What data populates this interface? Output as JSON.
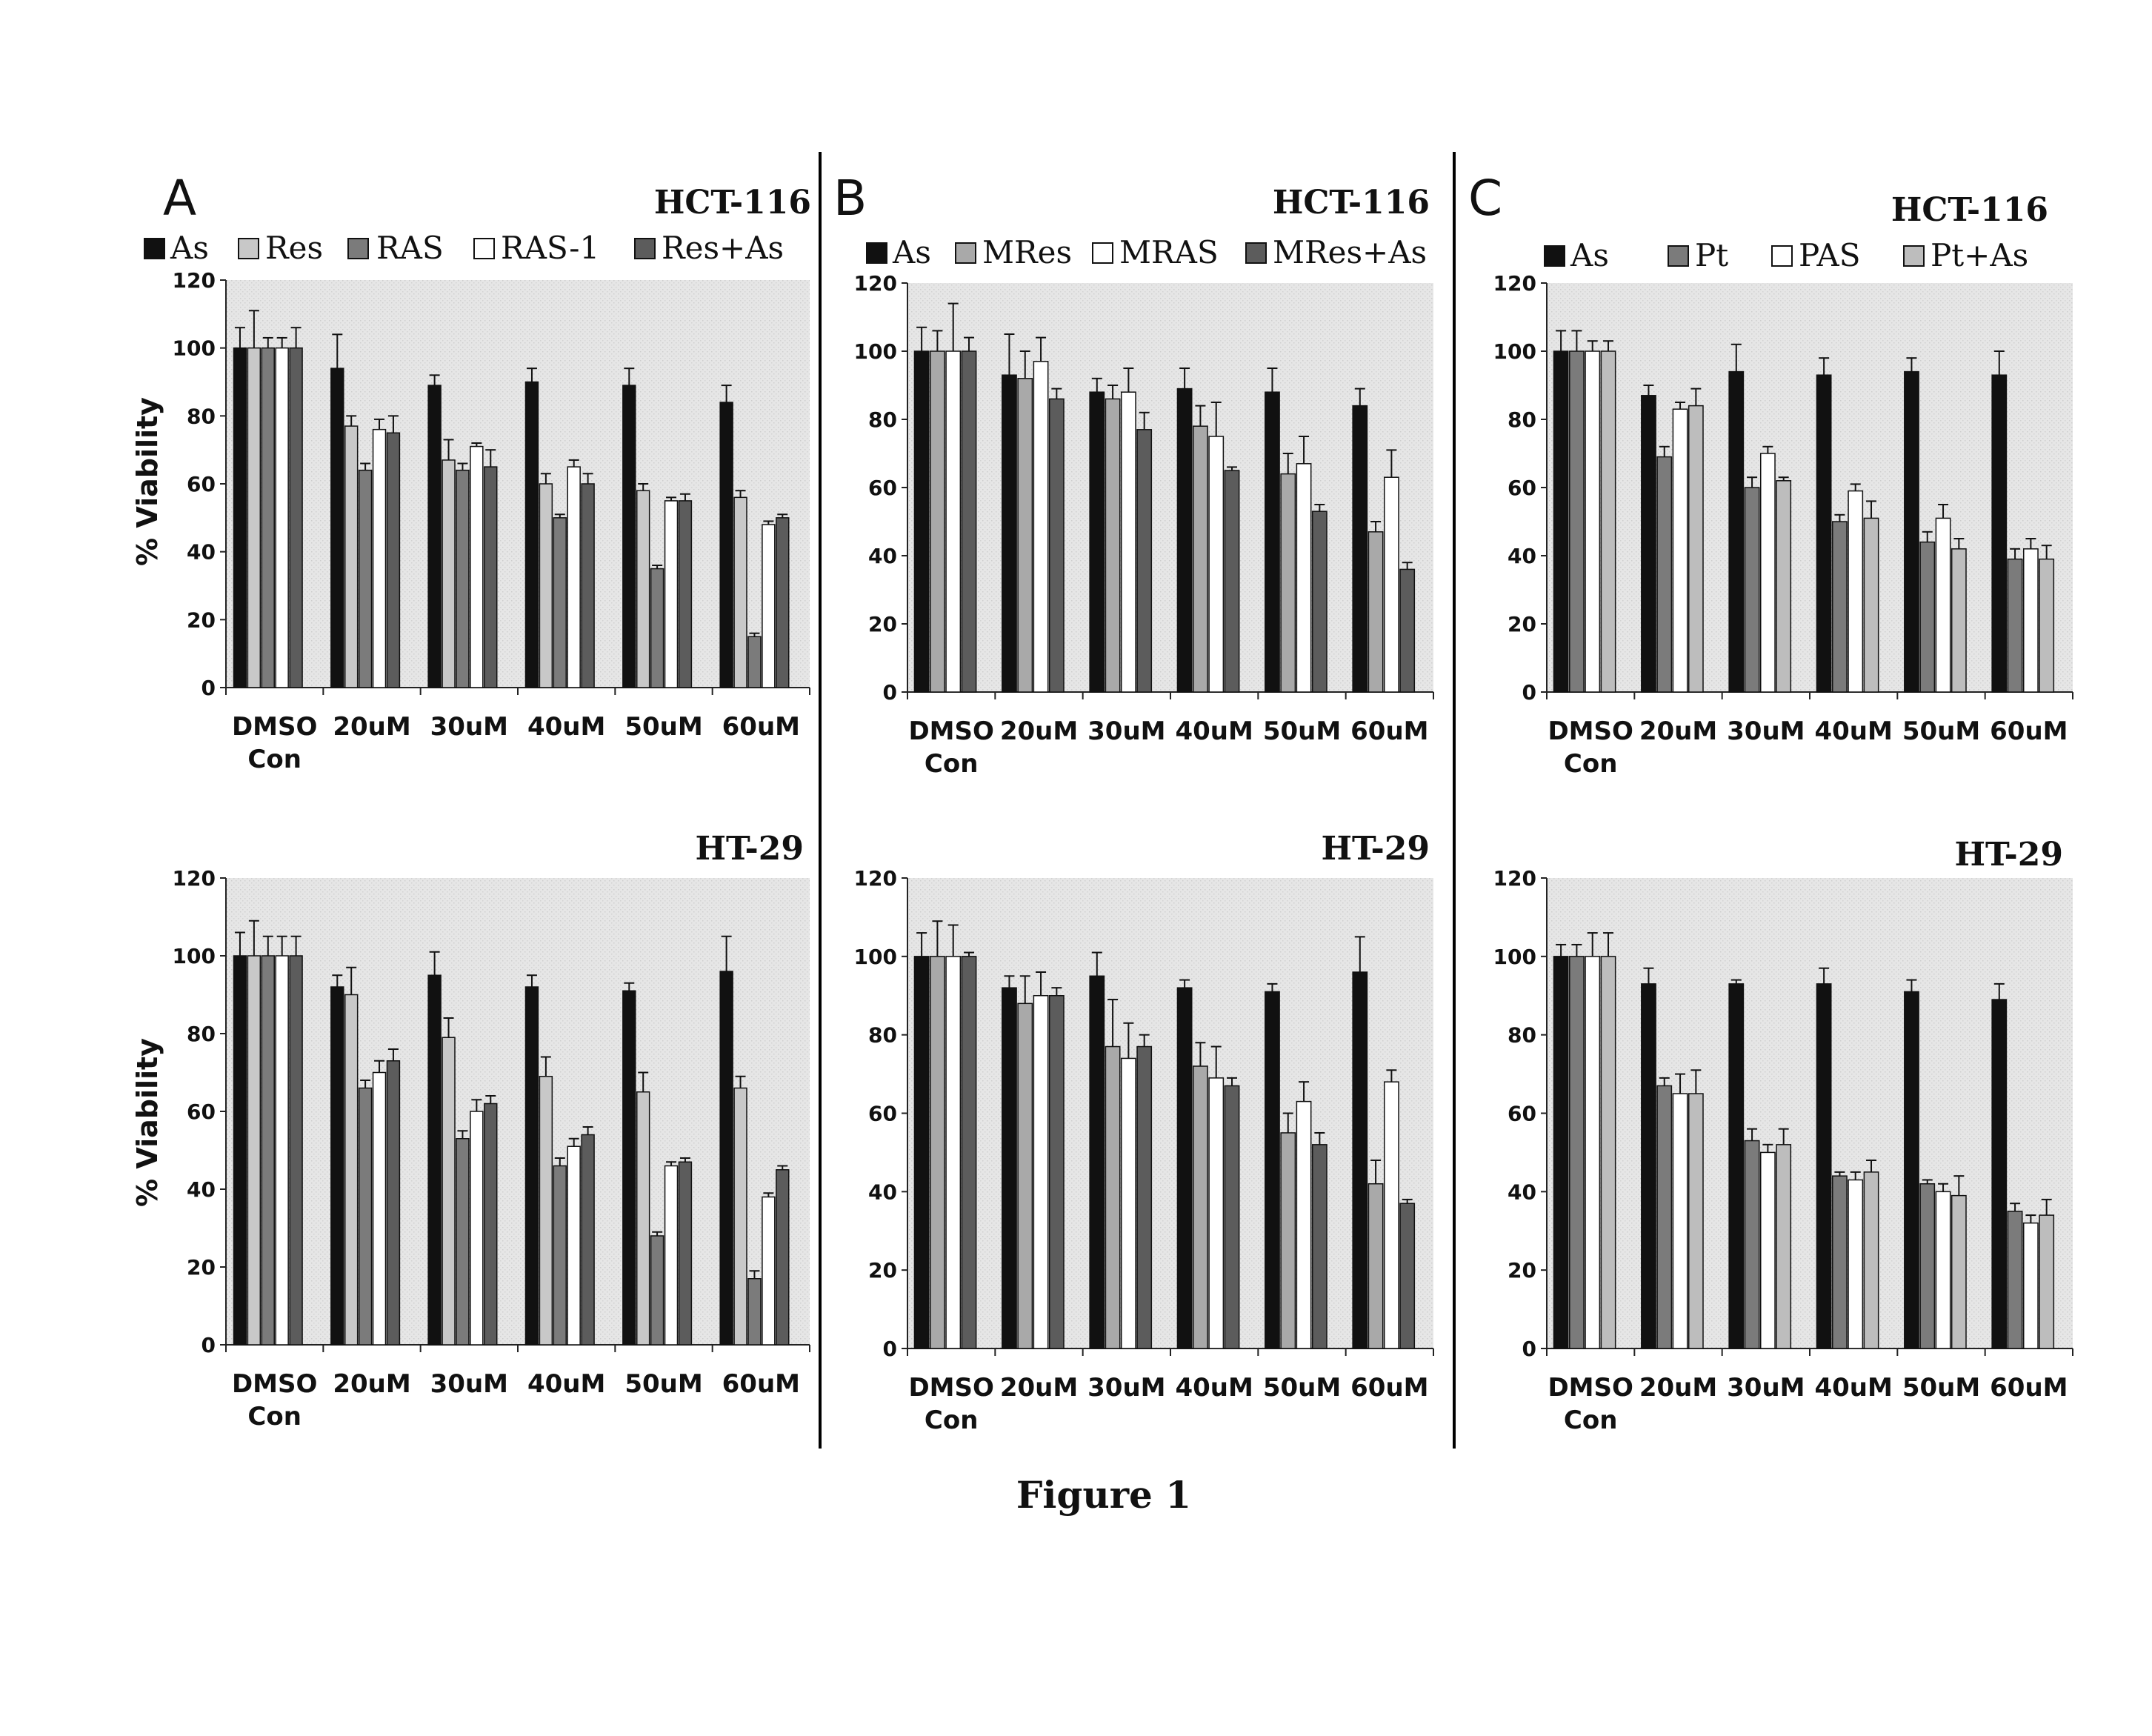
{
  "figure": {
    "caption": "Figure 1"
  },
  "panels": [
    {
      "letter": "A",
      "legend": [
        "As",
        "Res",
        "RAS",
        "RAS-1",
        "Res+As"
      ]
    },
    {
      "letter": "B",
      "legend": [
        "As",
        "MRes",
        "MRAS",
        "MRes+As"
      ]
    },
    {
      "letter": "C",
      "legend": [
        "As",
        "Pt",
        "PAS",
        "Pt+As"
      ]
    }
  ],
  "colors": {
    "As": "#111111",
    "Res": "#c8c8c8",
    "RAS": "#7b7b7b",
    "RAS-1": "#ffffff",
    "Res+As": "#5c5c5c",
    "MRes": "#a9a9a9",
    "MRAS": "#ffffff",
    "MRes+As": "#5c5c5c",
    "Pt": "#7b7b7b",
    "PAS": "#ffffff",
    "Pt+As": "#bdbdbd",
    "plot_bg": "#e4e4e4"
  },
  "chart_data": [
    {
      "type": "bar",
      "panel": "A",
      "title": "HCT-116",
      "ylabel": "% Viability",
      "ylim": [
        0,
        120
      ],
      "yticks": [
        "0",
        "20",
        "40",
        "60",
        "80",
        "100",
        "120"
      ],
      "categories": [
        "DMSO\nCon",
        "20uM",
        "30uM",
        "40uM",
        "50uM",
        "60uM"
      ],
      "series": [
        {
          "name": "As",
          "values": [
            100,
            94,
            89,
            90,
            89,
            84
          ],
          "errors": [
            6,
            10,
            3,
            4,
            5,
            5
          ]
        },
        {
          "name": "Res",
          "values": [
            100,
            77,
            67,
            60,
            58,
            56
          ],
          "errors": [
            11,
            3,
            6,
            3,
            2,
            2
          ]
        },
        {
          "name": "RAS",
          "values": [
            100,
            64,
            64,
            50,
            35,
            15
          ],
          "errors": [
            3,
            2,
            2,
            1,
            1,
            1
          ]
        },
        {
          "name": "RAS-1",
          "values": [
            100,
            76,
            71,
            65,
            55,
            48
          ],
          "errors": [
            3,
            3,
            1,
            2,
            1,
            1
          ]
        },
        {
          "name": "Res+As",
          "values": [
            100,
            75,
            65,
            60,
            55,
            50
          ],
          "errors": [
            6,
            5,
            5,
            3,
            2,
            1
          ]
        }
      ]
    },
    {
      "type": "bar",
      "panel": "B",
      "title": "HCT-116",
      "ylabel": "",
      "ylim": [
        0,
        120
      ],
      "yticks": [
        "0",
        "20",
        "40",
        "60",
        "80",
        "100",
        "120"
      ],
      "categories": [
        "DMSO\nCon",
        "20uM",
        "30uM",
        "40uM",
        "50uM",
        "60uM"
      ],
      "series": [
        {
          "name": "As",
          "values": [
            100,
            93,
            88,
            89,
            88,
            84
          ],
          "errors": [
            7,
            12,
            4,
            6,
            7,
            5
          ]
        },
        {
          "name": "MRes",
          "values": [
            100,
            92,
            86,
            78,
            64,
            47
          ],
          "errors": [
            6,
            8,
            4,
            6,
            6,
            3
          ]
        },
        {
          "name": "MRAS",
          "values": [
            100,
            97,
            88,
            75,
            67,
            63
          ],
          "errors": [
            14,
            7,
            7,
            10,
            8,
            8
          ]
        },
        {
          "name": "MRes+As",
          "values": [
            100,
            86,
            77,
            65,
            53,
            36
          ],
          "errors": [
            4,
            3,
            5,
            1,
            2,
            2
          ]
        }
      ]
    },
    {
      "type": "bar",
      "panel": "C",
      "title": "HCT-116",
      "ylabel": "",
      "ylim": [
        0,
        120
      ],
      "yticks": [
        "0",
        "20",
        "40",
        "60",
        "80",
        "100",
        "120"
      ],
      "categories": [
        "DMSO\nCon",
        "20uM",
        "30uM",
        "40uM",
        "50uM",
        "60uM"
      ],
      "series": [
        {
          "name": "As",
          "values": [
            100,
            87,
            94,
            93,
            94,
            93
          ],
          "errors": [
            6,
            3,
            8,
            5,
            4,
            7
          ]
        },
        {
          "name": "Pt",
          "values": [
            100,
            69,
            60,
            50,
            44,
            39
          ],
          "errors": [
            6,
            3,
            3,
            2,
            3,
            3
          ]
        },
        {
          "name": "PAS",
          "values": [
            100,
            83,
            70,
            59,
            51,
            42
          ],
          "errors": [
            3,
            2,
            2,
            2,
            4,
            3
          ]
        },
        {
          "name": "Pt+As",
          "values": [
            100,
            84,
            62,
            51,
            42,
            39
          ],
          "errors": [
            3,
            5,
            1,
            5,
            3,
            4
          ]
        }
      ]
    },
    {
      "type": "bar",
      "panel": "A",
      "title": "HT-29",
      "ylabel": "% Viability",
      "ylim": [
        0,
        120
      ],
      "yticks": [
        "0",
        "20",
        "40",
        "60",
        "80",
        "100",
        "120"
      ],
      "categories": [
        "DMSO\nCon",
        "20uM",
        "30uM",
        "40uM",
        "50uM",
        "60uM"
      ],
      "series": [
        {
          "name": "As",
          "values": [
            100,
            92,
            95,
            92,
            91,
            96
          ],
          "errors": [
            6,
            3,
            6,
            3,
            2,
            9
          ]
        },
        {
          "name": "Res",
          "values": [
            100,
            90,
            79,
            69,
            65,
            66
          ],
          "errors": [
            9,
            7,
            5,
            5,
            5,
            3
          ]
        },
        {
          "name": "RAS",
          "values": [
            100,
            66,
            53,
            46,
            28,
            17
          ],
          "errors": [
            5,
            2,
            2,
            2,
            1,
            2
          ]
        },
        {
          "name": "RAS-1",
          "values": [
            100,
            70,
            60,
            51,
            46,
            38
          ],
          "errors": [
            5,
            3,
            3,
            2,
            1,
            1
          ]
        },
        {
          "name": "Res+As",
          "values": [
            100,
            73,
            62,
            54,
            47,
            45
          ],
          "errors": [
            5,
            3,
            2,
            2,
            1,
            1
          ]
        }
      ]
    },
    {
      "type": "bar",
      "panel": "B",
      "title": "HT-29",
      "ylabel": "",
      "ylim": [
        0,
        120
      ],
      "yticks": [
        "0",
        "20",
        "40",
        "60",
        "80",
        "100",
        "120"
      ],
      "categories": [
        "DMSO\nCon",
        "20uM",
        "30uM",
        "40uM",
        "50uM",
        "60uM"
      ],
      "series": [
        {
          "name": "As",
          "values": [
            100,
            92,
            95,
            92,
            91,
            96
          ],
          "errors": [
            6,
            3,
            6,
            2,
            2,
            9
          ]
        },
        {
          "name": "MRes",
          "values": [
            100,
            88,
            77,
            72,
            55,
            42
          ],
          "errors": [
            9,
            7,
            12,
            6,
            5,
            6
          ]
        },
        {
          "name": "MRAS",
          "values": [
            100,
            90,
            74,
            69,
            63,
            68
          ],
          "errors": [
            8,
            6,
            9,
            8,
            5,
            3
          ]
        },
        {
          "name": "MRes+As",
          "values": [
            100,
            90,
            77,
            67,
            52,
            37
          ],
          "errors": [
            1,
            2,
            3,
            2,
            3,
            1
          ]
        }
      ]
    },
    {
      "type": "bar",
      "panel": "C",
      "title": "HT-29",
      "ylabel": "",
      "ylim": [
        0,
        120
      ],
      "yticks": [
        "0",
        "20",
        "40",
        "60",
        "80",
        "100",
        "120"
      ],
      "categories": [
        "DMSO\nCon",
        "20uM",
        "30uM",
        "40uM",
        "50uM",
        "60uM"
      ],
      "series": [
        {
          "name": "As",
          "values": [
            100,
            93,
            93,
            93,
            91,
            89
          ],
          "errors": [
            3,
            4,
            1,
            4,
            3,
            4
          ]
        },
        {
          "name": "Pt",
          "values": [
            100,
            67,
            53,
            44,
            42,
            35
          ],
          "errors": [
            3,
            2,
            3,
            1,
            1,
            2
          ]
        },
        {
          "name": "PAS",
          "values": [
            100,
            65,
            50,
            43,
            40,
            32
          ],
          "errors": [
            6,
            5,
            2,
            2,
            2,
            2
          ]
        },
        {
          "name": "Pt+As",
          "values": [
            100,
            65,
            52,
            45,
            39,
            34
          ],
          "errors": [
            6,
            6,
            4,
            3,
            5,
            4
          ]
        }
      ]
    }
  ]
}
